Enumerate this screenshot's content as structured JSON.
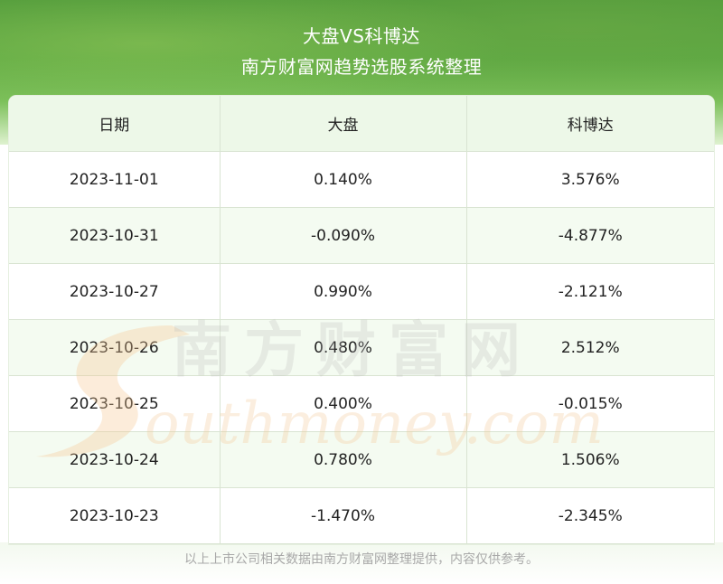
{
  "header": {
    "title": "大盘VS科博达",
    "subtitle": "南方财富网趋势选股系统整理"
  },
  "table": {
    "columns": [
      "日期",
      "大盘",
      "科博达"
    ],
    "rows": [
      [
        "2023-11-01",
        "0.140%",
        "3.576%"
      ],
      [
        "2023-10-31",
        "-0.090%",
        "-4.877%"
      ],
      [
        "2023-10-27",
        "0.990%",
        "-2.121%"
      ],
      [
        "2023-10-26",
        "0.480%",
        "2.512%"
      ],
      [
        "2023-10-25",
        "0.400%",
        "-0.015%"
      ],
      [
        "2023-10-24",
        "0.780%",
        "1.506%"
      ],
      [
        "2023-10-23",
        "-1.470%",
        "-2.345%"
      ]
    ]
  },
  "watermark": {
    "cn": "南方财富网",
    "en": "outhmoney.com"
  },
  "footer": {
    "note": "以上上市公司相关数据由南方财富网整理提供，内容仅供参考。"
  },
  "colors": {
    "header_green": "#5aa842",
    "header_row_bg": "#edf8e8",
    "watermark_orange": "#f5c896"
  }
}
